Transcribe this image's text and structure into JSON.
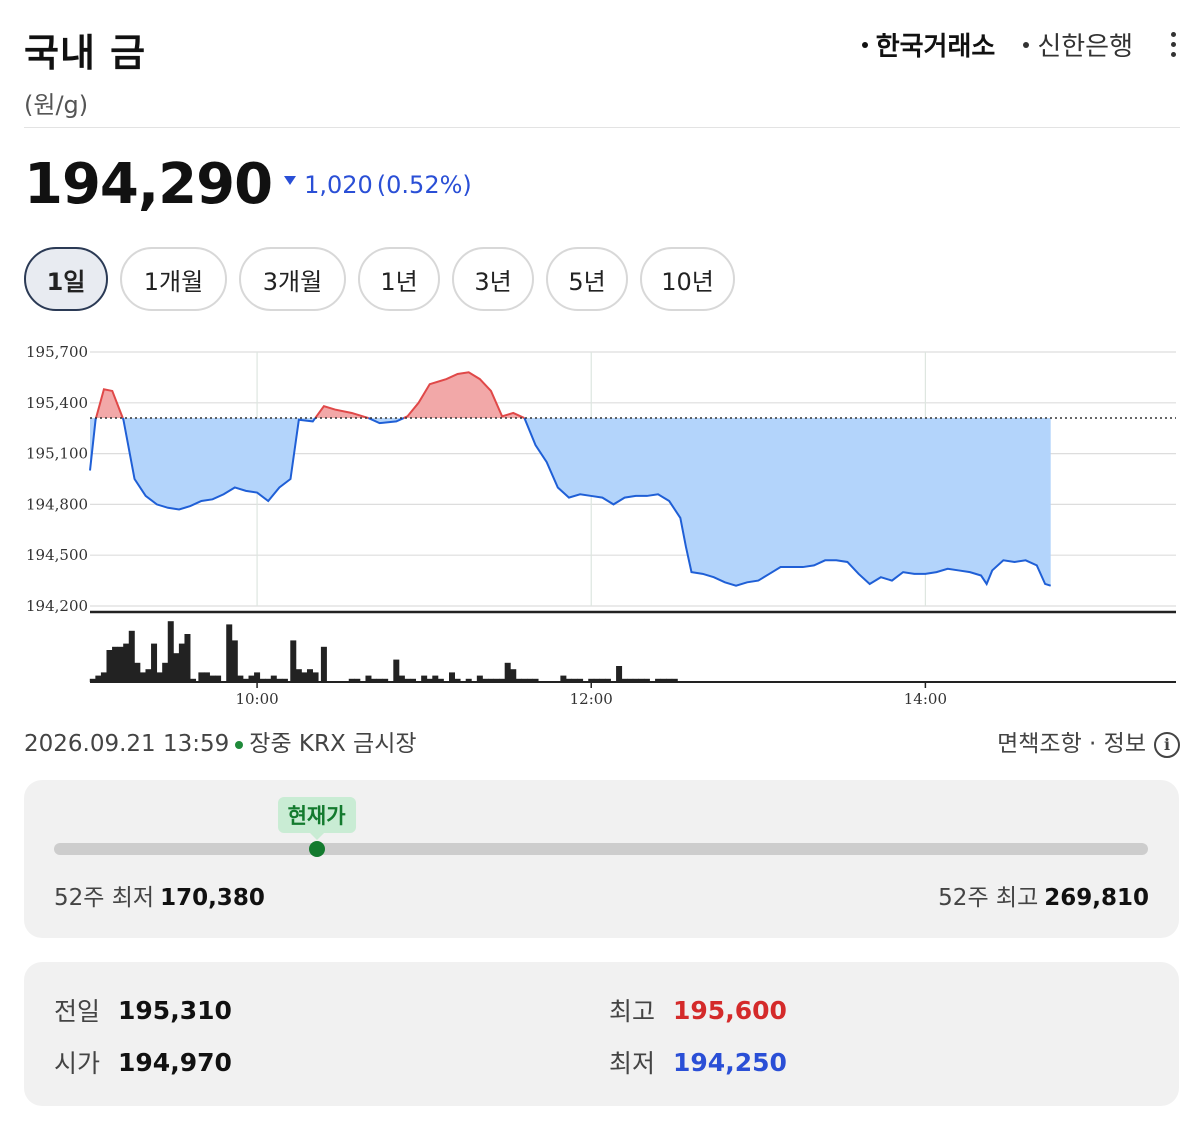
{
  "header": {
    "title": "국내 금",
    "unit": "(원/g)",
    "sources": [
      {
        "label": "한국거래소",
        "active": true
      },
      {
        "label": "신한은행",
        "active": false
      }
    ]
  },
  "quote": {
    "price": "194,290",
    "change": "1,020",
    "change_pct": "(0.52%)",
    "direction": "down"
  },
  "periods": [
    {
      "label": "1일",
      "active": true
    },
    {
      "label": "1개월",
      "active": false
    },
    {
      "label": "3개월",
      "active": false
    },
    {
      "label": "1년",
      "active": false
    },
    {
      "label": "3년",
      "active": false
    },
    {
      "label": "5년",
      "active": false
    },
    {
      "label": "10년",
      "active": false
    }
  ],
  "chart_data": {
    "type": "area",
    "y_ticks": [
      "195,700",
      "195,400",
      "195,100",
      "194,800",
      "194,500",
      "194,200"
    ],
    "x_ticks": [
      "10:00",
      "12:00",
      "14:00"
    ],
    "ylim": [
      194200,
      195700
    ],
    "xlim": [
      540,
      930
    ],
    "baseline": 195310,
    "colors": {
      "line": "#1f5fd6",
      "fill_down": "#b3d4fb",
      "fill_up": "#f2a8a8",
      "line_up": "#e04848"
    },
    "series": [
      {
        "values": [
          [
            540,
            195000
          ],
          [
            542,
            195300
          ],
          [
            545,
            195480
          ],
          [
            548,
            195470
          ],
          [
            552,
            195300
          ],
          [
            556,
            194950
          ],
          [
            560,
            194850
          ],
          [
            564,
            194800
          ],
          [
            568,
            194780
          ],
          [
            572,
            194770
          ],
          [
            576,
            194790
          ],
          [
            580,
            194820
          ],
          [
            584,
            194830
          ],
          [
            588,
            194860
          ],
          [
            592,
            194900
          ],
          [
            596,
            194880
          ],
          [
            600,
            194870
          ],
          [
            604,
            194820
          ],
          [
            608,
            194900
          ],
          [
            612,
            194950
          ],
          [
            615,
            195300
          ],
          [
            620,
            195290
          ],
          [
            624,
            195380
          ],
          [
            628,
            195360
          ],
          [
            634,
            195340
          ],
          [
            640,
            195310
          ],
          [
            644,
            195280
          ],
          [
            650,
            195290
          ],
          [
            654,
            195320
          ],
          [
            658,
            195400
          ],
          [
            662,
            195510
          ],
          [
            668,
            195540
          ],
          [
            672,
            195570
          ],
          [
            676,
            195580
          ],
          [
            680,
            195540
          ],
          [
            684,
            195470
          ],
          [
            688,
            195320
          ],
          [
            692,
            195340
          ],
          [
            696,
            195310
          ],
          [
            700,
            195150
          ],
          [
            704,
            195050
          ],
          [
            708,
            194900
          ],
          [
            712,
            194840
          ],
          [
            716,
            194860
          ],
          [
            720,
            194850
          ],
          [
            724,
            194840
          ],
          [
            728,
            194800
          ],
          [
            732,
            194840
          ],
          [
            736,
            194850
          ],
          [
            740,
            194850
          ],
          [
            744,
            194860
          ],
          [
            748,
            194820
          ],
          [
            752,
            194720
          ],
          [
            754,
            194550
          ],
          [
            756,
            194400
          ],
          [
            760,
            194390
          ],
          [
            764,
            194370
          ],
          [
            768,
            194340
          ],
          [
            772,
            194320
          ],
          [
            776,
            194340
          ],
          [
            780,
            194350
          ],
          [
            784,
            194390
          ],
          [
            788,
            194430
          ],
          [
            792,
            194430
          ],
          [
            796,
            194430
          ],
          [
            800,
            194440
          ],
          [
            804,
            194470
          ],
          [
            808,
            194470
          ],
          [
            812,
            194460
          ],
          [
            816,
            194390
          ],
          [
            820,
            194330
          ],
          [
            824,
            194370
          ],
          [
            828,
            194350
          ],
          [
            832,
            194400
          ],
          [
            836,
            194390
          ],
          [
            840,
            194390
          ],
          [
            844,
            194400
          ],
          [
            848,
            194420
          ],
          [
            852,
            194410
          ],
          [
            856,
            194400
          ],
          [
            860,
            194380
          ],
          [
            862,
            194330
          ],
          [
            864,
            194410
          ],
          [
            868,
            194470
          ],
          [
            872,
            194460
          ],
          [
            876,
            194470
          ],
          [
            880,
            194440
          ],
          [
            883,
            194330
          ],
          [
            885,
            194320
          ]
        ]
      }
    ],
    "volume": [
      [
        541,
        1
      ],
      [
        543,
        2
      ],
      [
        545,
        3
      ],
      [
        547,
        10
      ],
      [
        549,
        11
      ],
      [
        551,
        11
      ],
      [
        553,
        12
      ],
      [
        555,
        16
      ],
      [
        557,
        6
      ],
      [
        559,
        3
      ],
      [
        561,
        4
      ],
      [
        563,
        12
      ],
      [
        565,
        3
      ],
      [
        567,
        6
      ],
      [
        569,
        19
      ],
      [
        571,
        9
      ],
      [
        573,
        12
      ],
      [
        575,
        15
      ],
      [
        577,
        1
      ],
      [
        580,
        3
      ],
      [
        582,
        3
      ],
      [
        584,
        2
      ],
      [
        586,
        2
      ],
      [
        590,
        18
      ],
      [
        592,
        13
      ],
      [
        594,
        2
      ],
      [
        596,
        1
      ],
      [
        598,
        2
      ],
      [
        600,
        3
      ],
      [
        602,
        1
      ],
      [
        604,
        1
      ],
      [
        606,
        2
      ],
      [
        608,
        1
      ],
      [
        610,
        1
      ],
      [
        613,
        13
      ],
      [
        615,
        4
      ],
      [
        617,
        3
      ],
      [
        619,
        4
      ],
      [
        621,
        3
      ],
      [
        624,
        11
      ],
      [
        634,
        1
      ],
      [
        636,
        1
      ],
      [
        640,
        2
      ],
      [
        642,
        1
      ],
      [
        644,
        1
      ],
      [
        646,
        1
      ],
      [
        650,
        7
      ],
      [
        652,
        2
      ],
      [
        654,
        1
      ],
      [
        656,
        1
      ],
      [
        660,
        2
      ],
      [
        662,
        1
      ],
      [
        664,
        2
      ],
      [
        666,
        1
      ],
      [
        670,
        3
      ],
      [
        672,
        1
      ],
      [
        676,
        1
      ],
      [
        680,
        2
      ],
      [
        682,
        1
      ],
      [
        684,
        1
      ],
      [
        686,
        1
      ],
      [
        688,
        1
      ],
      [
        690,
        6
      ],
      [
        692,
        4
      ],
      [
        694,
        1
      ],
      [
        696,
        1
      ],
      [
        698,
        1
      ],
      [
        700,
        1
      ],
      [
        710,
        2
      ],
      [
        712,
        1
      ],
      [
        714,
        1
      ],
      [
        716,
        1
      ],
      [
        720,
        1
      ],
      [
        722,
        1
      ],
      [
        724,
        1
      ],
      [
        726,
        1
      ],
      [
        730,
        5
      ],
      [
        732,
        1
      ],
      [
        734,
        1
      ],
      [
        736,
        1
      ],
      [
        738,
        1
      ],
      [
        740,
        1
      ],
      [
        744,
        1
      ],
      [
        746,
        1
      ],
      [
        748,
        1
      ],
      [
        750,
        1
      ]
    ]
  },
  "footer": {
    "timestamp": "2026.09.21 13:59",
    "market": "장중 KRX 금시장",
    "disclaimer": "면책조항 · 정보",
    "info_icon": "i"
  },
  "range_52w": {
    "current_label": "현재가",
    "low_label": "52주 최저",
    "low_value": "170,380",
    "high_label": "52주 최고",
    "high_value": "269,810",
    "position": 0.24
  },
  "stats": {
    "prev_close_label": "전일",
    "prev_close": "195,310",
    "open_label": "시가",
    "open": "194,970",
    "high_label": "최고",
    "high": "195,600",
    "low_label": "최저",
    "low": "194,250"
  }
}
